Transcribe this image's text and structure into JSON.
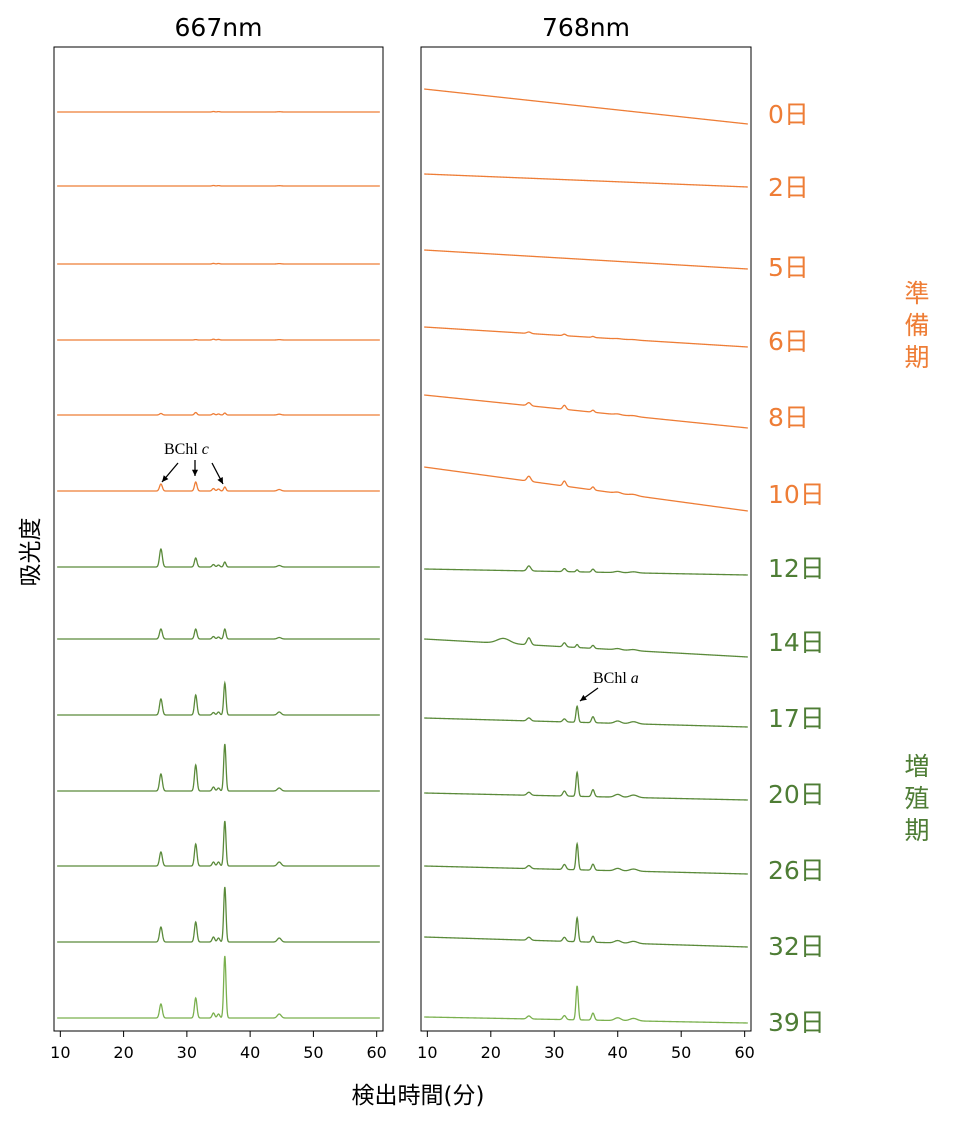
{
  "colors": {
    "prep": "#ee7d36",
    "growth": "#5a8a3a",
    "growth_dark": "#4e7d35",
    "growth_light": "#7ab04e",
    "axis": "#000000"
  },
  "chart_data": {
    "type": "line",
    "y_axis_label": "吸光度",
    "x_axis_label": "検出時間(分)",
    "panels": [
      {
        "title": "667nm",
        "xlim": [
          9,
          61
        ],
        "xticks": [
          10,
          20,
          30,
          40,
          50,
          60
        ]
      },
      {
        "title": "768nm",
        "xlim": [
          9,
          61
        ],
        "xticks": [
          10,
          20,
          30,
          40,
          50,
          60
        ]
      }
    ],
    "series": [
      {
        "name": "0日",
        "phase": "prep"
      },
      {
        "name": "2日",
        "phase": "prep"
      },
      {
        "name": "5日",
        "phase": "prep"
      },
      {
        "name": "6日",
        "phase": "prep"
      },
      {
        "name": "8日",
        "phase": "prep"
      },
      {
        "name": "10日",
        "phase": "prep"
      },
      {
        "name": "12日",
        "phase": "growth"
      },
      {
        "name": "14日",
        "phase": "growth"
      },
      {
        "name": "17日",
        "phase": "growth"
      },
      {
        "name": "20日",
        "phase": "growth"
      },
      {
        "name": "26日",
        "phase": "growth"
      },
      {
        "name": "32日",
        "phase": "growth"
      },
      {
        "name": "39日",
        "phase": "growth"
      }
    ],
    "phase_labels": [
      {
        "text": "準備期",
        "chars": [
          "準",
          "備",
          "期"
        ],
        "phase": "prep"
      },
      {
        "text": "増殖期",
        "chars": [
          "増",
          "殖",
          "期"
        ],
        "phase": "growth"
      }
    ],
    "annotations": [
      {
        "panel": 0,
        "label": "BChl",
        "label_italic": "c",
        "series": "10日",
        "peaks_min": [
          25.8,
          31.4,
          36.0
        ]
      },
      {
        "panel": 1,
        "label": "BChl",
        "label_italic": "a",
        "series": "17日",
        "peaks_min": [
          33.6
        ]
      }
    ]
  }
}
